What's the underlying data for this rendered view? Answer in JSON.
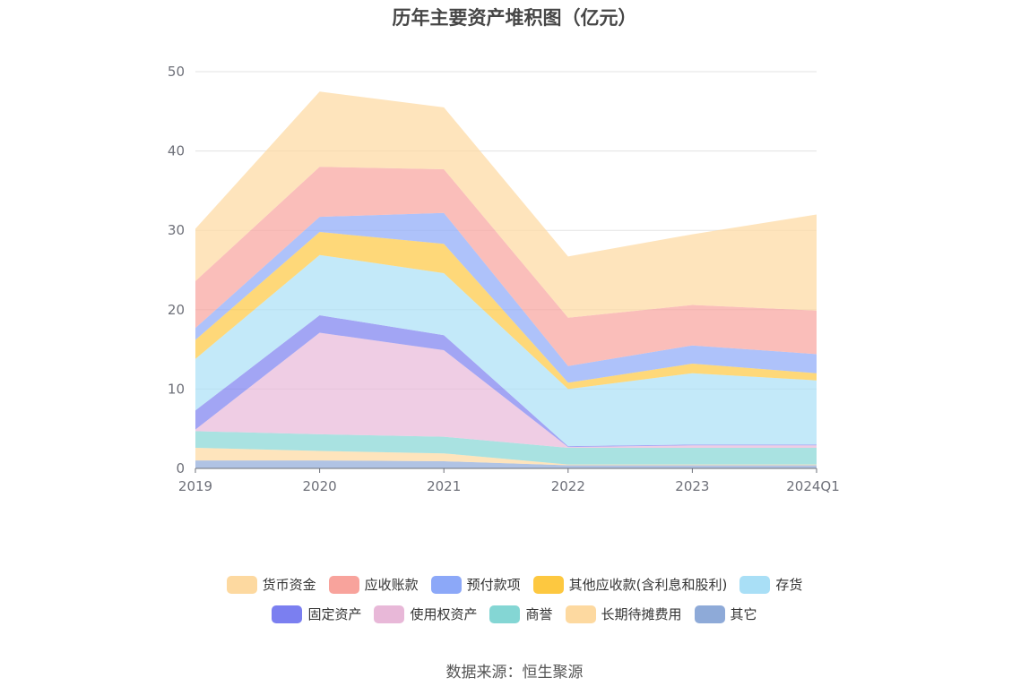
{
  "chart_data": {
    "type": "area",
    "stacked": true,
    "title": "历年主要资产堆积图（亿元）",
    "categories": [
      "2019",
      "2020",
      "2021",
      "2022",
      "2023",
      "2024Q1"
    ],
    "ylim": [
      0,
      50
    ],
    "yticks": [
      0,
      10,
      20,
      30,
      40,
      50
    ],
    "grid": true,
    "legend_position": "bottom",
    "series": [
      {
        "name": "其它",
        "color": "#8eaad8",
        "values": [
          1.0,
          1.0,
          0.9,
          0.4,
          0.4,
          0.4
        ]
      },
      {
        "name": "长期待摊费用",
        "color": "#fdd9a0",
        "values": [
          1.6,
          1.2,
          1.0,
          0.1,
          0.1,
          0.1
        ]
      },
      {
        "name": "商誉",
        "color": "#84d6d4",
        "values": [
          2.1,
          2.1,
          2.1,
          2.1,
          2.1,
          2.1
        ]
      },
      {
        "name": "使用权资产",
        "color": "#e8b8d8",
        "values": [
          0.2,
          12.8,
          10.9,
          0.1,
          0.3,
          0.3
        ]
      },
      {
        "name": "固定资产",
        "color": "#7b7ff0",
        "values": [
          2.4,
          2.2,
          1.9,
          0.1,
          0.1,
          0.1
        ]
      },
      {
        "name": "存货",
        "color": "#a9dff6",
        "values": [
          6.5,
          7.6,
          7.8,
          7.2,
          9.0,
          8.1
        ]
      },
      {
        "name": "其他应收款(含利息和股利)",
        "color": "#fdc840",
        "values": [
          2.4,
          2.9,
          3.7,
          0.8,
          1.2,
          0.9
        ]
      },
      {
        "name": "预付款项",
        "color": "#8ca8f8",
        "values": [
          1.5,
          1.9,
          3.9,
          2.1,
          2.3,
          2.4
        ]
      },
      {
        "name": "应收账款",
        "color": "#f8a39c",
        "values": [
          5.9,
          6.3,
          5.5,
          6.1,
          5.1,
          5.5
        ]
      },
      {
        "name": "货币资金",
        "color": "#fdd9a0",
        "values": [
          6.6,
          9.5,
          7.8,
          7.7,
          8.9,
          12.1
        ]
      }
    ]
  },
  "legend_rows": [
    [
      {
        "label": "货币资金",
        "color": "#fdd9a0"
      },
      {
        "label": "应收账款",
        "color": "#f8a39c"
      },
      {
        "label": "预付款项",
        "color": "#8ca8f8"
      },
      {
        "label": "其他应收款(含利息和股利)",
        "color": "#fdc840"
      },
      {
        "label": "存货",
        "color": "#a9dff6"
      }
    ],
    [
      {
        "label": "固定资产",
        "color": "#7b7ff0"
      },
      {
        "label": "使用权资产",
        "color": "#e8b8d8"
      },
      {
        "label": "商誉",
        "color": "#84d6d4"
      },
      {
        "label": "长期待摊费用",
        "color": "#fdd9a0"
      },
      {
        "label": "其它",
        "color": "#8eaad8"
      }
    ]
  ],
  "source": "数据来源：恒生聚源"
}
